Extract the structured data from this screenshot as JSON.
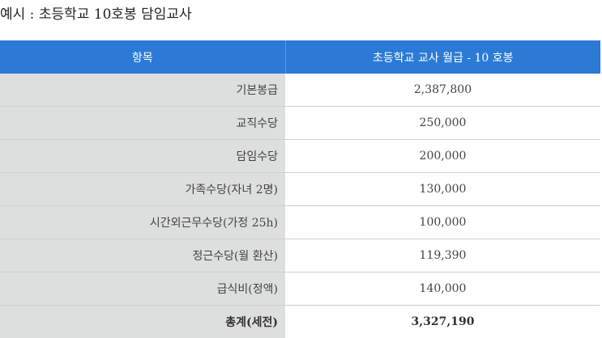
{
  "page": {
    "title": "예시 : 초등학교 10호봉 담임교사"
  },
  "table": {
    "headers": [
      "항목",
      "초등학교 교사 월급 - 10 호봉"
    ],
    "rows": [
      {
        "item": "기본봉급",
        "value": "2,387,800"
      },
      {
        "item": "교직수당",
        "value": "250,000"
      },
      {
        "item": "담임수당",
        "value": "200,000"
      },
      {
        "item": "가족수당(자녀 2명)",
        "value": "130,000"
      },
      {
        "item": "시간외근무수당(가정 25h)",
        "value": "100,000"
      },
      {
        "item": "정근수당(월 환산)",
        "value": "119,390"
      },
      {
        "item": "급식비(정액)",
        "value": "140,000"
      }
    ],
    "total": {
      "item": "총계(세전)",
      "value": "3,327,190"
    }
  },
  "colors": {
    "header_bg": "#2b7ad6",
    "item_col_bg": "#dddede"
  }
}
